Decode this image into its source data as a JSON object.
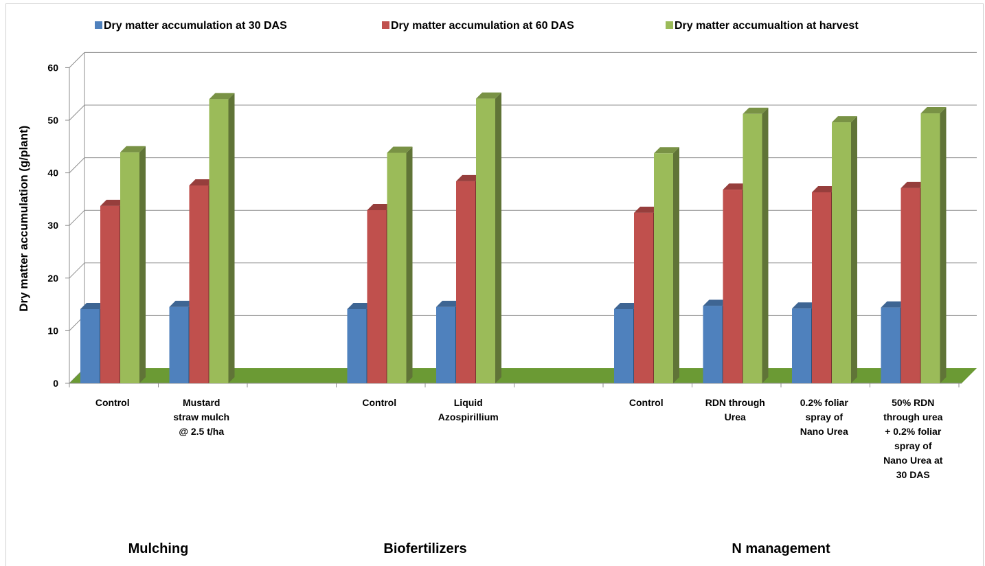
{
  "chart_data": {
    "type": "bar",
    "variant": "3d-clustered-column",
    "ylabel": "Dry matter accumulation (g/plant)",
    "xlabel": "",
    "ylim": [
      0,
      60
    ],
    "yticks": [
      "0",
      "10",
      "20",
      "30",
      "40",
      "50",
      "60"
    ],
    "grid": true,
    "legend_position": "top",
    "categories": [
      "Control",
      "Mustard\nstraw mulch\n@ 2.5 t/ha",
      "",
      "Control",
      "Liquid\nAzospirillium",
      "",
      "Control",
      "RDN through\nUrea",
      "0.2% foliar\nspray of\nNano Urea",
      "50% RDN\nthrough urea\n+ 0.2% foliar\nspray of\nNano Urea at\n30 DAS"
    ],
    "groups": [
      {
        "label": "Mulching",
        "span": [
          0,
          1
        ]
      },
      {
        "label": "Biofertilizers",
        "span": [
          3,
          4
        ]
      },
      {
        "label": "N management",
        "span": [
          6,
          9
        ]
      }
    ],
    "series": [
      {
        "name": "Dry matter accumulation at 30 DAS",
        "color": "#4F81BD",
        "values": [
          14.1,
          14.5,
          null,
          14.1,
          14.5,
          null,
          14.1,
          14.7,
          14.2,
          14.4
        ]
      },
      {
        "name": "Dry matter accumulation at 60 DAS",
        "color": "#C0504D",
        "values": [
          33.7,
          37.6,
          null,
          32.9,
          38.4,
          null,
          32.4,
          36.8,
          36.3,
          37.1
        ]
      },
      {
        "name": "Dry matter accumualtion at harvest",
        "color": "#9BBB59",
        "values": [
          43.9,
          54.0,
          null,
          43.8,
          54.1,
          null,
          43.7,
          51.2,
          49.6,
          51.3
        ]
      }
    ],
    "floor_color": "#6B9A34"
  }
}
